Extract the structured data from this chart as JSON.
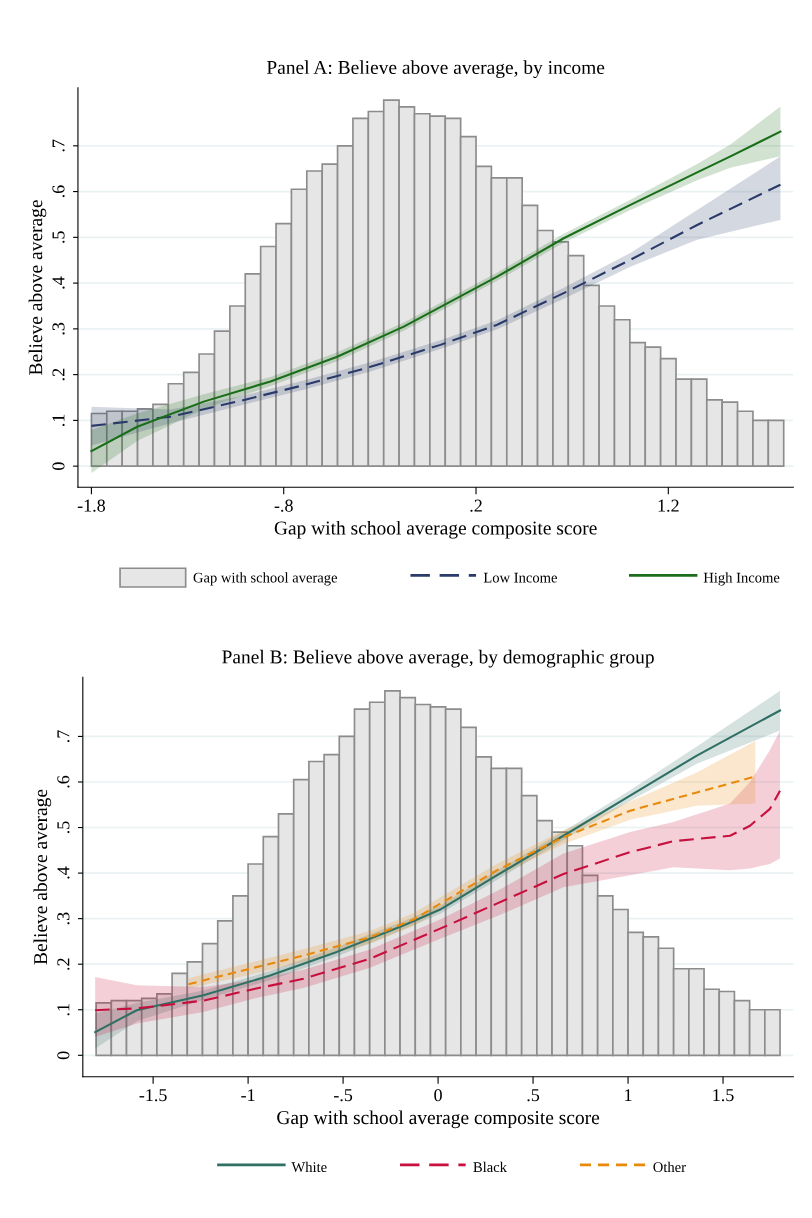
{
  "chart_data": [
    {
      "type": "line",
      "title": "Panel A: Believe above average, by income",
      "xlabel": "Gap with school average composite score",
      "ylabel": "Believe above average",
      "xlim": [
        -1.87,
        1.85
      ],
      "ylim": [
        -0.046,
        0.827
      ],
      "xticks": [
        -1.8,
        {
          "value": -0.8,
          "label": "-.8"
        },
        {
          "value": 0.2,
          "label": ".2"
        },
        1.2
      ],
      "yticks": [
        0,
        {
          "value": 0.1,
          "label": ".1"
        },
        {
          "value": 0.2,
          "label": ".2"
        },
        {
          "value": 0.3,
          "label": ".3"
        },
        {
          "value": 0.4,
          "label": ".4"
        },
        {
          "value": 0.5,
          "label": ".5"
        },
        {
          "value": 0.6,
          "label": ".6"
        },
        {
          "value": 0.7,
          "label": ".7"
        }
      ],
      "grid": "y",
      "legend": "bottom",
      "series": [
        {
          "type": "histogram",
          "name": "Gap with school average",
          "color": "#e6e6e6",
          "bins": [
            -1.8,
            -1.72,
            -1.64,
            -1.56,
            -1.48,
            -1.4,
            -1.32,
            -1.24,
            -1.16,
            -1.08,
            -1,
            -0.92,
            -0.84,
            -0.76,
            -0.68,
            -0.6,
            -0.52,
            -0.44,
            -0.36,
            -0.28,
            -0.2,
            -0.12,
            -0.04,
            0.04,
            0.12,
            0.2,
            0.28,
            0.36,
            0.44,
            0.52,
            0.6,
            0.68,
            0.76,
            0.84,
            0.92,
            1,
            1.08,
            1.16,
            1.24,
            1.32,
            1.4,
            1.48,
            1.56,
            1.64,
            1.72,
            1.8
          ],
          "values": [
            0.115,
            0.12,
            0.12,
            0.125,
            0.135,
            0.18,
            0.205,
            0.245,
            0.295,
            0.35,
            0.42,
            0.48,
            0.53,
            0.605,
            0.645,
            0.66,
            0.7,
            0.76,
            0.775,
            0.8,
            0.785,
            0.77,
            0.765,
            0.76,
            0.72,
            0.655,
            0.63,
            0.63,
            0.57,
            0.515,
            0.49,
            0.46,
            0.395,
            0.35,
            0.32,
            0.27,
            0.26,
            0.235,
            0.19,
            0.19,
            0.145,
            0.14,
            0.12,
            0.1,
            0.1
          ]
        },
        {
          "type": "line",
          "name": "Low Income",
          "color": "#2a3a6a",
          "line_style": "dashed",
          "x": [
            -1.8,
            -1.389,
            -1.042,
            -0.696,
            -0.349,
            0.015,
            0.31,
            0.656,
            1.003,
            1.35,
            1.783
          ],
          "values": [
            0.088,
            0.108,
            0.141,
            0.177,
            0.217,
            0.265,
            0.309,
            0.378,
            0.451,
            0.527,
            0.615
          ],
          "lower": [
            0.045,
            0.094,
            0.131,
            0.167,
            0.207,
            0.256,
            0.299,
            0.366,
            0.436,
            0.495,
            0.538
          ],
          "upper": [
            0.13,
            0.124,
            0.151,
            0.187,
            0.227,
            0.275,
            0.319,
            0.39,
            0.466,
            0.56,
            0.677
          ]
        },
        {
          "type": "line",
          "name": "High Income",
          "color": "#1a6e1a",
          "line_style": "solid",
          "x": [
            -1.8,
            -1.562,
            -1.216,
            -0.869,
            -0.522,
            -0.176,
            0.31,
            0.656,
            1.003,
            1.35,
            1.523,
            1.783
          ],
          "values": [
            0.033,
            0.086,
            0.141,
            0.185,
            0.239,
            0.305,
            0.414,
            0.498,
            0.571,
            0.642,
            0.677,
            0.731
          ],
          "lower": [
            -0.015,
            0.055,
            0.125,
            0.175,
            0.229,
            0.296,
            0.405,
            0.488,
            0.56,
            0.625,
            0.652,
            0.677
          ],
          "upper": [
            0.079,
            0.115,
            0.157,
            0.195,
            0.249,
            0.314,
            0.423,
            0.508,
            0.582,
            0.66,
            0.703,
            0.786
          ]
        }
      ]
    },
    {
      "type": "line",
      "title": "Panel B: Believe above average, by demographic group",
      "xlabel": "Gap with school average composite score",
      "ylabel": "Believe above average",
      "xlim": [
        -1.87,
        1.87
      ],
      "ylim": [
        -0.047,
        0.83
      ],
      "xticks": [
        -1.5,
        -1,
        {
          "value": -0.5,
          "label": "-.5"
        },
        0,
        {
          "value": 0.5,
          "label": ".5"
        },
        1,
        1.5
      ],
      "yticks": [
        0,
        {
          "value": 0.1,
          "label": ".1"
        },
        {
          "value": 0.2,
          "label": ".2"
        },
        {
          "value": 0.3,
          "label": ".3"
        },
        {
          "value": 0.4,
          "label": ".4"
        },
        {
          "value": 0.5,
          "label": ".5"
        },
        {
          "value": 0.6,
          "label": ".6"
        },
        {
          "value": 0.7,
          "label": ".7"
        }
      ],
      "grid": "y",
      "legend": "bottom",
      "series": [
        {
          "type": "histogram",
          "color": "#e6e6e6",
          "bins": [
            -1.8,
            -1.72,
            -1.64,
            -1.56,
            -1.48,
            -1.4,
            -1.32,
            -1.24,
            -1.16,
            -1.08,
            -1,
            -0.92,
            -0.84,
            -0.76,
            -0.68,
            -0.6,
            -0.52,
            -0.44,
            -0.36,
            -0.28,
            -0.2,
            -0.12,
            -0.04,
            0.04,
            0.12,
            0.2,
            0.28,
            0.36,
            0.44,
            0.52,
            0.6,
            0.68,
            0.76,
            0.84,
            0.92,
            1,
            1.08,
            1.16,
            1.24,
            1.32,
            1.4,
            1.48,
            1.56,
            1.64,
            1.72,
            1.8
          ],
          "values": [
            0.115,
            0.12,
            0.12,
            0.125,
            0.135,
            0.18,
            0.205,
            0.245,
            0.295,
            0.35,
            0.42,
            0.48,
            0.53,
            0.605,
            0.645,
            0.66,
            0.7,
            0.76,
            0.775,
            0.8,
            0.785,
            0.77,
            0.765,
            0.76,
            0.72,
            0.655,
            0.63,
            0.63,
            0.57,
            0.515,
            0.49,
            0.46,
            0.395,
            0.35,
            0.32,
            0.27,
            0.26,
            0.235,
            0.19,
            0.19,
            0.145,
            0.14,
            0.12,
            0.1,
            0.1
          ]
        },
        {
          "type": "line",
          "name": "White",
          "color": "#2f6f64",
          "line_style": "solid",
          "x": [
            -1.805,
            -1.586,
            -1.235,
            -0.884,
            -0.533,
            -0.183,
            0.011,
            0.309,
            0.66,
            1.011,
            1.362,
            1.8
          ],
          "values": [
            0.051,
            0.099,
            0.132,
            0.175,
            0.227,
            0.285,
            0.32,
            0.395,
            0.482,
            0.57,
            0.658,
            0.757
          ],
          "lower": [
            0.015,
            0.075,
            0.122,
            0.165,
            0.217,
            0.276,
            0.311,
            0.385,
            0.472,
            0.558,
            0.64,
            0.713
          ],
          "upper": [
            0.092,
            0.115,
            0.142,
            0.185,
            0.237,
            0.294,
            0.329,
            0.405,
            0.492,
            0.582,
            0.678,
            0.8
          ]
        },
        {
          "type": "line",
          "name": "Black",
          "color": "#c8103e",
          "line_style": "dashed",
          "x": [
            -1.805,
            -1.586,
            -1.235,
            -0.963,
            -0.709,
            -0.358,
            0.011,
            0.309,
            0.66,
            1.011,
            1.239,
            1.537,
            1.642,
            1.747,
            1.8
          ],
          "values": [
            0.099,
            0.103,
            0.12,
            0.146,
            0.168,
            0.212,
            0.278,
            0.333,
            0.398,
            0.446,
            0.47,
            0.482,
            0.504,
            0.541,
            0.581
          ],
          "lower": [
            0.04,
            0.07,
            0.095,
            0.125,
            0.148,
            0.192,
            0.256,
            0.305,
            0.369,
            0.395,
            0.413,
            0.406,
            0.41,
            0.42,
            0.432
          ],
          "upper": [
            0.172,
            0.154,
            0.15,
            0.166,
            0.188,
            0.232,
            0.298,
            0.36,
            0.443,
            0.49,
            0.512,
            0.553,
            0.6,
            0.67,
            0.713
          ]
        },
        {
          "type": "line",
          "name": "Other",
          "color": "#e8890c",
          "line_style": "dotted",
          "x": [
            -1.314,
            -1.06,
            -0.709,
            -0.358,
            -0.13,
            0.309,
            0.66,
            1.011,
            1.362,
            1.67
          ],
          "values": [
            0.156,
            0.183,
            0.219,
            0.259,
            0.298,
            0.406,
            0.479,
            0.537,
            0.577,
            0.612
          ],
          "lower": [
            0.147,
            0.17,
            0.205,
            0.245,
            0.284,
            0.392,
            0.464,
            0.517,
            0.548,
            0.553
          ],
          "upper": [
            0.169,
            0.196,
            0.233,
            0.273,
            0.312,
            0.42,
            0.494,
            0.557,
            0.621,
            0.69
          ]
        }
      ]
    }
  ]
}
